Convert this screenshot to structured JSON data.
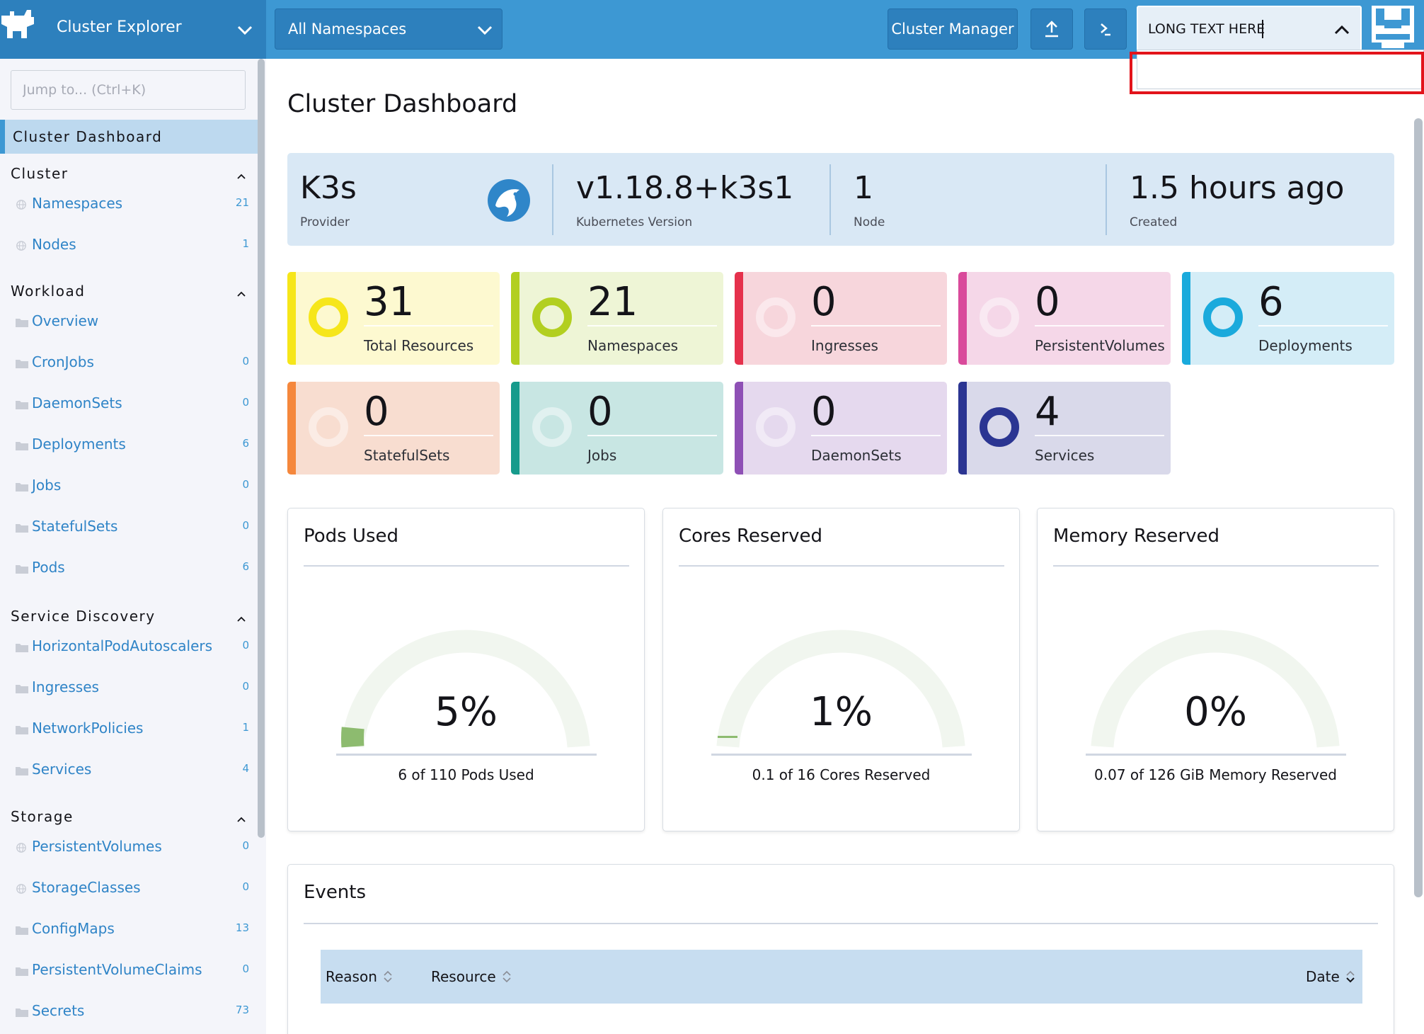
{
  "header": {
    "app_title": "Cluster Explorer",
    "namespace_select": "All Namespaces",
    "cluster_manager_label": "Cluster Manager",
    "search_value": "LONG TEXT HERE"
  },
  "sidebar": {
    "jump_placeholder": "Jump to... (Ctrl+K)",
    "active_item": "Cluster Dashboard",
    "groups": [
      {
        "label": "Cluster",
        "items": [
          {
            "label": "Namespaces",
            "count": "21"
          },
          {
            "label": "Nodes",
            "count": "1"
          }
        ]
      },
      {
        "label": "Workload",
        "items": [
          {
            "label": "Overview",
            "count": ""
          },
          {
            "label": "CronJobs",
            "count": "0"
          },
          {
            "label": "DaemonSets",
            "count": "0"
          },
          {
            "label": "Deployments",
            "count": "6"
          },
          {
            "label": "Jobs",
            "count": "0"
          },
          {
            "label": "StatefulSets",
            "count": "0"
          },
          {
            "label": "Pods",
            "count": "6"
          }
        ]
      },
      {
        "label": "Service Discovery",
        "items": [
          {
            "label": "HorizontalPodAutoscalers",
            "count": "0"
          },
          {
            "label": "Ingresses",
            "count": "0"
          },
          {
            "label": "NetworkPolicies",
            "count": "1"
          },
          {
            "label": "Services",
            "count": "4"
          }
        ]
      },
      {
        "label": "Storage",
        "items": [
          {
            "label": "PersistentVolumes",
            "count": "0"
          },
          {
            "label": "StorageClasses",
            "count": "0"
          },
          {
            "label": "ConfigMaps",
            "count": "13"
          },
          {
            "label": "PersistentVolumeClaims",
            "count": "0"
          },
          {
            "label": "Secrets",
            "count": "73"
          }
        ]
      }
    ]
  },
  "main": {
    "title": "Cluster Dashboard",
    "summary": {
      "provider_value": "K3s",
      "provider_label": "Provider",
      "version_value": "v1.18.8+k3s1",
      "version_label": "Kubernetes Version",
      "node_value": "1",
      "node_label": "Node",
      "created_value": "1.5 hours ago",
      "created_label": "Created"
    },
    "tiles": [
      {
        "count": "31",
        "label": "Total Resources",
        "active": true,
        "accent": "#f6e61a",
        "bg": "#fdf9d0"
      },
      {
        "count": "21",
        "label": "Namespaces",
        "active": true,
        "accent": "#b2cf20",
        "bg": "#eef5d6"
      },
      {
        "count": "0",
        "label": "Ingresses",
        "active": false,
        "accent": "#e5314c",
        "bg": "#f7d6dc"
      },
      {
        "count": "0",
        "label": "PersistentVolumes",
        "active": false,
        "accent": "#d94a9b",
        "bg": "#f5d7e8"
      },
      {
        "count": "6",
        "label": "Deployments",
        "active": true,
        "accent": "#1aaadc",
        "bg": "#d4edf7"
      },
      {
        "count": "0",
        "label": "StatefulSets",
        "active": false,
        "accent": "#f5873c",
        "bg": "#f8ddd0"
      },
      {
        "count": "0",
        "label": "Jobs",
        "active": false,
        "accent": "#179b8c",
        "bg": "#c8e6e3"
      },
      {
        "count": "0",
        "label": "DaemonSets",
        "active": false,
        "accent": "#8e50b5",
        "bg": "#e5d9ee"
      },
      {
        "count": "4",
        "label": "Services",
        "active": true,
        "accent": "#2b3592",
        "bg": "#d9d9ea"
      }
    ],
    "gauges": [
      {
        "title": "Pods Used",
        "percent_label": "5%",
        "fraction": 0.05,
        "subtitle": "6 of 110 Pods Used"
      },
      {
        "title": "Cores Reserved",
        "percent_label": "1%",
        "fraction": 0.01,
        "subtitle": "0.1 of 16 Cores Reserved"
      },
      {
        "title": "Memory Reserved",
        "percent_label": "0%",
        "fraction": 0.0,
        "subtitle": "0.07 of 126 GiB Memory Reserved"
      }
    ],
    "events": {
      "title": "Events",
      "columns": [
        "Reason",
        "Resource",
        "Date"
      ]
    }
  },
  "colors": {
    "header_bg": "#3d98d3",
    "brand_bg": "#2d80bd",
    "link": "#2f84c7",
    "gauge_fill": "#8dbb6f",
    "gauge_track": "#f1f6ef",
    "highlight": "#e2141b"
  }
}
